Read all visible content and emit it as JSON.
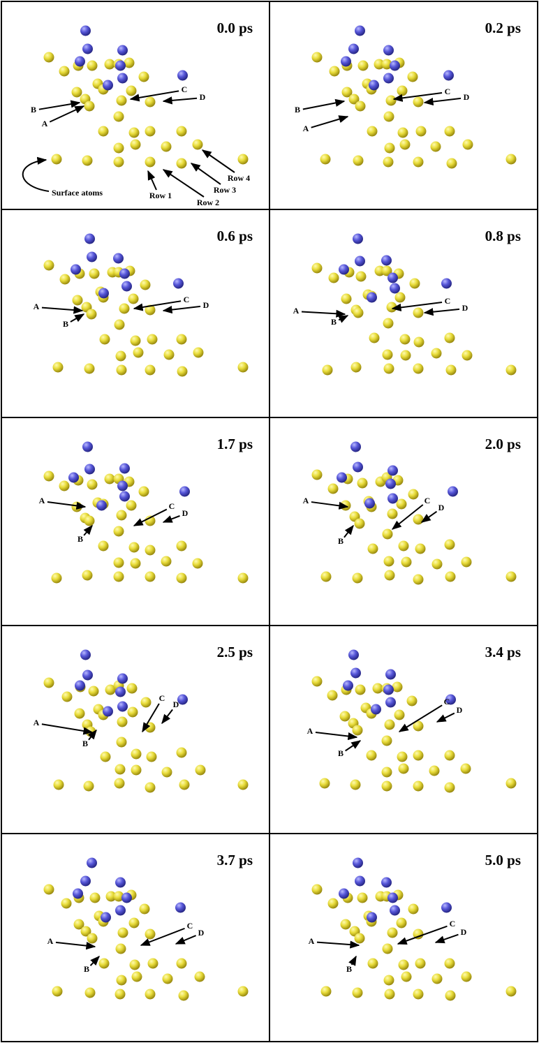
{
  "panels": [
    {
      "time": "0.0 ps",
      "labels": [
        "A",
        "B",
        "C",
        "D"
      ],
      "rows": [
        "Row 1",
        "Row 2",
        "Row 3",
        "Row 4"
      ],
      "surface": "Surface atoms"
    },
    {
      "time": "0.2 ps",
      "labels": [
        "A",
        "B",
        "C",
        "D"
      ]
    },
    {
      "time": "0.6 ps",
      "labels": [
        "A",
        "B",
        "C",
        "D"
      ]
    },
    {
      "time": "0.8 ps",
      "labels": [
        "A",
        "B",
        "C",
        "D"
      ]
    },
    {
      "time": "1.7 ps",
      "labels": [
        "A",
        "B",
        "C",
        "D"
      ]
    },
    {
      "time": "2.0 ps",
      "labels": [
        "A",
        "B",
        "C",
        "D"
      ]
    },
    {
      "time": "2.5 ps",
      "labels": [
        "A",
        "B",
        "C",
        "D"
      ]
    },
    {
      "time": "3.4 ps",
      "labels": [
        "A",
        "B",
        "C",
        "D"
      ]
    },
    {
      "time": "3.7 ps",
      "labels": [
        "A",
        "B",
        "C",
        "D"
      ]
    },
    {
      "time": "5.0 ps",
      "labels": [
        "A",
        "B",
        "C",
        "D"
      ]
    }
  ]
}
